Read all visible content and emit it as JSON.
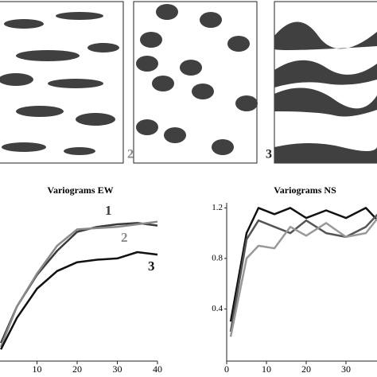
{
  "panel_labels": [
    "2",
    "3"
  ],
  "chart_data": [
    {
      "type": "line",
      "title": "Variograms EW",
      "xlim": [
        0,
        40
      ],
      "xticks": [
        10,
        20,
        30,
        40
      ],
      "ylim": [
        0,
        1.24
      ],
      "series": [
        {
          "name": "1",
          "color": "#3a3a3a",
          "x": [
            1,
            5,
            10,
            15,
            20,
            25,
            30,
            35,
            40
          ],
          "values": [
            0.13,
            0.42,
            0.67,
            0.86,
            1.01,
            1.05,
            1.07,
            1.08,
            1.06
          ]
        },
        {
          "name": "2",
          "color": "#8a8a8a",
          "x": [
            1,
            5,
            10,
            15,
            20,
            25,
            30,
            35,
            40
          ],
          "values": [
            0.1,
            0.42,
            0.68,
            0.9,
            1.03,
            1.04,
            1.05,
            1.07,
            1.09
          ]
        },
        {
          "name": "3",
          "color": "#111111",
          "x": [
            1,
            5,
            10,
            15,
            20,
            25,
            30,
            35,
            40
          ],
          "values": [
            0.08,
            0.33,
            0.56,
            0.7,
            0.77,
            0.79,
            0.8,
            0.85,
            0.83
          ]
        }
      ]
    },
    {
      "type": "line",
      "title": "Variograms NS",
      "xlim": [
        0,
        38
      ],
      "xticks": [
        0,
        10,
        20,
        30
      ],
      "ylim": [
        0,
        1.24
      ],
      "yticks": [
        0.4,
        0.8,
        1.2
      ],
      "series": [
        {
          "color": "#111111",
          "x": [
            1,
            5,
            8,
            12,
            16,
            20,
            25,
            30,
            35,
            38
          ],
          "values": [
            0.3,
            1.0,
            1.2,
            1.15,
            1.2,
            1.12,
            1.18,
            1.12,
            1.2,
            1.1
          ]
        },
        {
          "color": "#555555",
          "x": [
            1,
            5,
            8,
            12,
            16,
            20,
            25,
            30,
            35,
            38
          ],
          "values": [
            0.22,
            0.95,
            1.1,
            1.05,
            1.0,
            1.1,
            1.0,
            0.97,
            1.05,
            1.15
          ]
        },
        {
          "color": "#999999",
          "x": [
            1,
            5,
            8,
            12,
            16,
            20,
            25,
            30,
            35,
            38
          ],
          "values": [
            0.18,
            0.8,
            0.9,
            0.88,
            1.05,
            0.98,
            1.08,
            0.97,
            1.0,
            1.12
          ]
        }
      ]
    }
  ]
}
